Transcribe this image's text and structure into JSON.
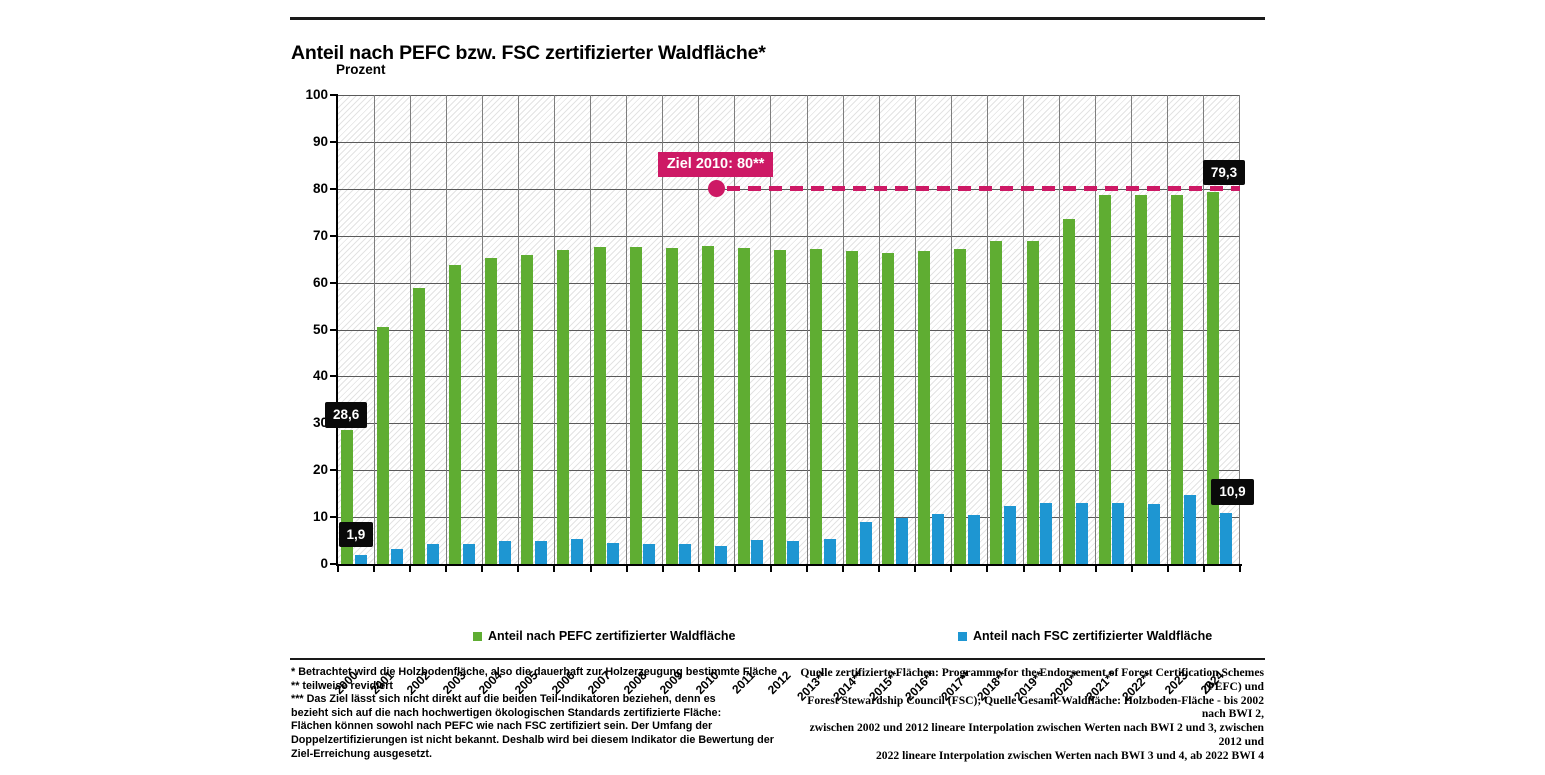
{
  "header": {
    "title": "Anteil nach PEFC bzw. FSC zertifizierter Waldfläche*"
  },
  "colors": {
    "pefc_green": "#5FAD32",
    "fsc_blue": "#1E96D2",
    "target_pink": "#CD1965",
    "callout_black": "#0a0a0a",
    "grid_dark": "#5a5a5a",
    "grid_gray": "#7e7e7e"
  },
  "legend": [
    {
      "label": "Anteil nach PEFC zertifizierter Waldfläche",
      "color": "#5FAD32"
    },
    {
      "label": "Anteil nach FSC zertifizierter Waldfläche",
      "color": "#1E96D2"
    }
  ],
  "chart_data": {
    "type": "bar",
    "title": "Anteil nach PEFC bzw. FSC zertifizierter Waldfläche*",
    "ylabel": "Prozent",
    "xlabel": "",
    "ylim": [
      0,
      100
    ],
    "yticks": [
      0,
      10,
      20,
      30,
      40,
      50,
      60,
      70,
      80,
      90,
      100
    ],
    "grid": true,
    "legend_position": "bottom",
    "categories": [
      "2000",
      "2001",
      "2002",
      "2003",
      "2004",
      "2005",
      "2006",
      "2007",
      "2008",
      "2009",
      "2010",
      "2011",
      "2012",
      "2013**",
      "2014**",
      "2015**",
      "2016**",
      "2017**",
      "2018**",
      "2019**",
      "2020**",
      "2021**",
      "2022**",
      "2023",
      "2024"
    ],
    "series": [
      {
        "name": "Anteil nach PEFC zertifizierter Waldfläche",
        "color": "#5FAD32",
        "values": [
          28.6,
          50.6,
          58.9,
          63.8,
          65.3,
          65.9,
          67.0,
          67.6,
          67.5,
          67.4,
          67.7,
          67.4,
          67.0,
          67.1,
          66.7,
          66.3,
          66.8,
          67.2,
          68.8,
          68.9,
          73.5,
          78.6,
          78.6,
          78.6,
          79.3
        ]
      },
      {
        "name": "Anteil nach FSC zertifizierter Waldfläche",
        "color": "#1E96D2",
        "values": [
          1.9,
          3.3,
          4.2,
          4.2,
          4.8,
          4.9,
          5.4,
          4.5,
          4.2,
          4.3,
          3.9,
          5.1,
          4.9,
          5.3,
          8.9,
          9.8,
          10.6,
          10.5,
          12.3,
          13.1,
          12.9,
          12.9,
          12.8,
          14.7,
          10.9
        ]
      }
    ],
    "target_line": {
      "label": "Ziel 2010: 80**",
      "value": 80,
      "starts_at_category": "2010",
      "color": "#CD1965",
      "style": "dashed"
    },
    "annotations": [
      {
        "text": "28,6",
        "series": 0,
        "category": "2000"
      },
      {
        "text": "1,9",
        "series": 1,
        "category": "2000"
      },
      {
        "text": "79,3",
        "series": 0,
        "category": "2024"
      },
      {
        "text": "10,9",
        "series": 1,
        "category": "2024"
      }
    ]
  },
  "footnotes": {
    "left_lines": [
      "* Betrachtet wird die Holzbodenfläche, also die dauerhaft zur Holzerzeugung bestimmte Fläche",
      "** teilweise revidiert",
      "*** Das Ziel lässt sich nicht direkt auf die beiden Teil-Indikatoren beziehen, denn es",
      "bezieht sich auf die nach hochwertigen ökologischen Standards zertifizierte Fläche:",
      "Flächen können sowohl nach PEFC wie nach FSC zertifiziert sein. Der Umfang der",
      "Doppelzertifizierungen ist nicht bekannt. Deshalb wird bei diesem Indikator die Bewertung der",
      "Ziel-Erreichung ausgesetzt."
    ],
    "right_lines": [
      "Quelle zertifizierte Flächen: Programme for the Endorsement of Forest Certification Schemes (PEFC) und",
      "Forest Stewardship Council (FSC); Quelle Gesamt-Waldfläche: Holzboden-Fläche - bis 2002 nach BWI 2,",
      "zwischen 2002 und 2012 lineare Interpolation zwischen Werten nach BWI 2 und 3, zwischen 2012 und",
      "2022 lineare Interpolation zwischen Werten nach BWI 3 und 4, ab 2022 BWI 4"
    ]
  }
}
